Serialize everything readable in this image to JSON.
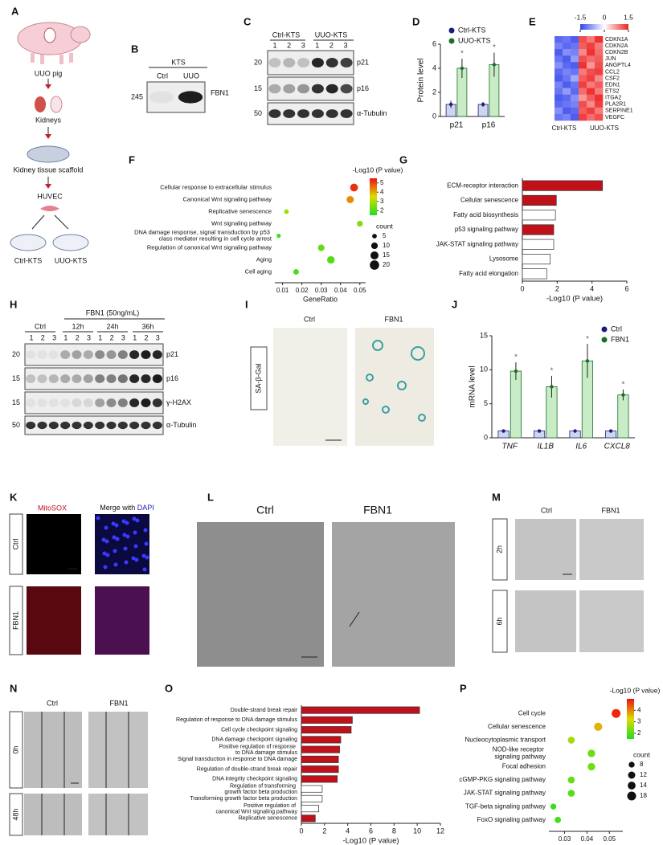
{
  "panel_labels": [
    "A",
    "B",
    "C",
    "D",
    "E",
    "F",
    "G",
    "H",
    "I",
    "J",
    "K",
    "L",
    "M",
    "N",
    "O",
    "P"
  ],
  "A": {
    "labels": [
      "UUO pig",
      "Kidneys",
      "Kidney tissue scaffold",
      "HUVEC",
      "Ctrl-KTS",
      "UUO-KTS"
    ]
  },
  "B": {
    "header": "KTS",
    "lanes": [
      "Ctrl",
      "UUO"
    ],
    "marker": 245,
    "band": "FBN1"
  },
  "C": {
    "groups": [
      "Ctrl-KTS",
      "UUO-KTS"
    ],
    "lanes": [
      1,
      2,
      3,
      1,
      2,
      3
    ],
    "markers": [
      20,
      15,
      50
    ],
    "bands": [
      "p21",
      "p16",
      "α-Tubulin"
    ]
  },
  "H": {
    "treatment": "FBN1 (50ng/mL)",
    "groups": [
      "Ctrl",
      "12h",
      "24h",
      "36h"
    ],
    "lanes": [
      1,
      2,
      3,
      1,
      2,
      3,
      1,
      2,
      3,
      1,
      2,
      3
    ],
    "markers": [
      20,
      15,
      15,
      50
    ],
    "bands": [
      "p21",
      "p16",
      "γ-H2AX",
      "α-Tubulin"
    ]
  },
  "I": {
    "stain": "SA-β-Gal",
    "columns": [
      "Ctrl",
      "FBN1"
    ]
  },
  "K": {
    "stain": "MitoSOX",
    "merge": "Merge with",
    "dye": "DAPI",
    "rows": [
      "Ctrl",
      "FBN1"
    ]
  },
  "L": {
    "columns": [
      "Ctrl",
      "FBN1"
    ]
  },
  "M": {
    "columns": [
      "Ctrl",
      "FBN1"
    ],
    "rows": [
      "2h",
      "6h"
    ]
  },
  "N": {
    "columns": [
      "Ctrl",
      "FBN1"
    ],
    "rows": [
      "0h",
      "48h"
    ]
  },
  "chart_data": [
    {
      "type": "bar",
      "ylabel": "Protein level",
      "categories": [
        "p21",
        "p16"
      ],
      "series": [
        {
          "name": "Ctrl-KTS",
          "color": "#1c1c7a",
          "fill": "#cdd6f0",
          "values": [
            1,
            1
          ],
          "errors": [
            0.3,
            0.2
          ]
        },
        {
          "name": "UUO-KTS",
          "color": "#1e6b2a",
          "fill": "#c8ecc6",
          "values": [
            4,
            4.3
          ],
          "errors": [
            0.8,
            1
          ],
          "sig_labels": [
            "*",
            "*"
          ]
        }
      ],
      "ylim": [
        0,
        6
      ],
      "yticks": [
        0,
        2,
        4,
        6
      ]
    },
    {
      "type": "heatmap",
      "rows": [
        "CDKN1A",
        "CDKN2A",
        "CDKN2B",
        "JUN",
        "ANGPTL4",
        "CCL2",
        "CSF2",
        "EDN1",
        "ETS2",
        "ITGA2",
        "PLA2R1",
        "SERPINE1",
        "VEGFC"
      ],
      "column_groups": [
        "Ctrl-KTS",
        "UUO-KTS"
      ],
      "matrix": [
        [
          -1.2,
          -1.1,
          -1.3,
          1.2,
          0.9,
          1.4
        ],
        [
          -1.0,
          -1.2,
          -1.1,
          1.1,
          1.3,
          0.9
        ],
        [
          -1.3,
          -0.9,
          -1.0,
          0.8,
          1.4,
          1.0
        ],
        [
          -1.1,
          -1.3,
          -0.8,
          1.2,
          1.0,
          1.1
        ],
        [
          -0.9,
          -1.2,
          -1.3,
          1.4,
          0.7,
          1.2
        ],
        [
          -1.2,
          -1.0,
          -1.1,
          0.9,
          1.2,
          1.3
        ],
        [
          -1.3,
          -1.1,
          -0.7,
          1.1,
          1.3,
          0.8
        ],
        [
          -1.0,
          -1.3,
          -1.1,
          1.3,
          0.9,
          1.1
        ],
        [
          -1.1,
          -0.8,
          -1.2,
          1.0,
          1.4,
          0.9
        ],
        [
          -1.3,
          -1.2,
          -0.9,
          0.7,
          1.1,
          1.4
        ],
        [
          -1.2,
          -1.1,
          -1.0,
          1.2,
          0.8,
          1.3
        ],
        [
          -0.9,
          -1.3,
          -1.2,
          1.1,
          1.3,
          0.9
        ],
        [
          -1.1,
          -1.0,
          -1.3,
          1.3,
          1.0,
          1.2
        ]
      ],
      "clim": [
        -1.5,
        1.5
      ],
      "cticks": [
        -1.5,
        0,
        1.5
      ],
      "colormap": [
        "#3344ee",
        "#ffffff",
        "#ee2222"
      ]
    },
    {
      "type": "dot",
      "categories": [
        "Cellular response to extracellular stimulus",
        "Canonical Wnt signaling pathway",
        "Replicative senescence",
        "Wnt signaling pathway",
        "DNA damage response, signal transduction by p53 class mediator resulting in cell cycle arrest",
        "Regulation of canonical Wnt signaling pathway",
        "Aging",
        "Cell aging"
      ],
      "x": [
        0.047,
        0.045,
        0.012,
        0.05,
        0.008,
        0.03,
        0.035,
        0.017
      ],
      "log_p": [
        5.2,
        4.3,
        2.8,
        2.5,
        1.8,
        2.2,
        2.0,
        1.9
      ],
      "count": [
        14,
        12,
        5,
        8,
        4,
        10,
        13,
        7
      ],
      "xlim": [
        0.006,
        0.053
      ],
      "xticks": [
        0.01,
        0.02,
        0.03,
        0.04,
        0.05
      ],
      "xlabel": "GeneRatio",
      "color_title": "-Log10 (P value)",
      "clim": [
        1.5,
        5.5
      ],
      "cticks": [
        2,
        3,
        4,
        5
      ],
      "colormap": [
        "#22dd22",
        "#dddd00",
        "#ee1111"
      ],
      "size_title": "count",
      "size_ticks": [
        5,
        10,
        15,
        20
      ]
    },
    {
      "type": "hbar",
      "categories": [
        "ECM-receptor interaction",
        "Cellular senescence",
        "Fatty acid biosynthesis",
        "p53 signaling pathway",
        "JAK-STAT signaling pathway",
        "Lysosome",
        "Fatty acid elongation"
      ],
      "values": [
        4.6,
        1.95,
        1.9,
        1.8,
        1.8,
        1.6,
        1.4
      ],
      "colors": [
        "#c0101a",
        "#c0101a",
        "#ffffff",
        "#c0101a",
        "#ffffff",
        "#ffffff",
        "#ffffff"
      ],
      "xlim": [
        0,
        6
      ],
      "xticks": [
        0,
        2,
        4,
        6
      ],
      "xlabel": "-Log10 (P value)"
    },
    {
      "type": "bar",
      "ylabel": "mRNA level",
      "categories": [
        "TNF",
        "IL1B",
        "IL6",
        "CXCL8"
      ],
      "italic_categories": true,
      "series": [
        {
          "name": "Ctrl",
          "color": "#1c1c7a",
          "fill": "#cdd6f0",
          "values": [
            1,
            1,
            1,
            1
          ],
          "errors": [
            0.2,
            0.2,
            0.2,
            0.2
          ]
        },
        {
          "name": "FBN1",
          "color": "#1e6b2a",
          "fill": "#c8ecc6",
          "values": [
            9.8,
            7.5,
            11.3,
            6.3
          ],
          "errors": [
            1.3,
            1.6,
            2.5,
            0.8
          ],
          "sig_labels": [
            "*",
            "*",
            "*",
            "*"
          ]
        }
      ],
      "ylim": [
        0,
        15
      ],
      "yticks": [
        0,
        5,
        10,
        15
      ]
    },
    {
      "type": "hbar",
      "categories": [
        "Double-strand break repair",
        "Regulation of response to DNA damage stimulus",
        "Cell cycle checkpoint signaling",
        "DNA damage checkpoint signaling",
        "Positive regulation of response to DNA damage stimulus",
        "Signal transduction in response to DNA damage",
        "Regulation of double-strand break repair",
        "DNA integrity checkpoint signaling",
        "Regulation of transforming growth factor beta production",
        "Transforming growth factor beta production",
        "Positive regulation of canonical Wnt signaling pathway",
        "Replicative senescence"
      ],
      "values": [
        10.2,
        4.4,
        4.3,
        3.4,
        3.3,
        3.2,
        3.2,
        3.1,
        1.8,
        1.8,
        1.5,
        1.2
      ],
      "colors": [
        "#c0101a",
        "#c0101a",
        "#c0101a",
        "#c0101a",
        "#c0101a",
        "#c0101a",
        "#c0101a",
        "#c0101a",
        "#ffffff",
        "#ffffff",
        "#ffffff",
        "#c0101a"
      ],
      "xlim": [
        0,
        12
      ],
      "xticks": [
        0,
        2,
        4,
        6,
        8,
        10,
        12
      ],
      "xlabel": "-Log10 (P value)"
    },
    {
      "type": "dot",
      "categories": [
        "Cell cycle",
        "Cellular senescence",
        "Nucleocytoplasmic transport",
        "NOD-like receptor signaling pathway",
        "Focal adhesion",
        "cGMP-PKG signaling pathway",
        "JAK-STAT signaling pathway",
        "TGF-beta signaling pathway",
        "FoxO signaling pathway"
      ],
      "x": [
        0.053,
        0.045,
        0.033,
        0.042,
        0.042,
        0.033,
        0.033,
        0.025,
        0.027
      ],
      "log_p": [
        4.8,
        3.6,
        2.7,
        2.2,
        2.2,
        2.1,
        2.0,
        1.7,
        1.8
      ],
      "count": [
        18,
        15,
        11,
        13,
        13,
        11,
        11,
        8,
        9
      ],
      "xlim": [
        0.023,
        0.056
      ],
      "xticks": [
        0.03,
        0.04,
        0.05
      ],
      "xlabel": "GeneRatio",
      "color_title": "-Log10 (P value)",
      "clim": [
        1.5,
        5
      ],
      "cticks": [
        2,
        3,
        4
      ],
      "colormap": [
        "#22dd22",
        "#dddd00",
        "#ee1111"
      ],
      "size_title": "count",
      "size_ticks": [
        8,
        12,
        14,
        18
      ]
    }
  ]
}
